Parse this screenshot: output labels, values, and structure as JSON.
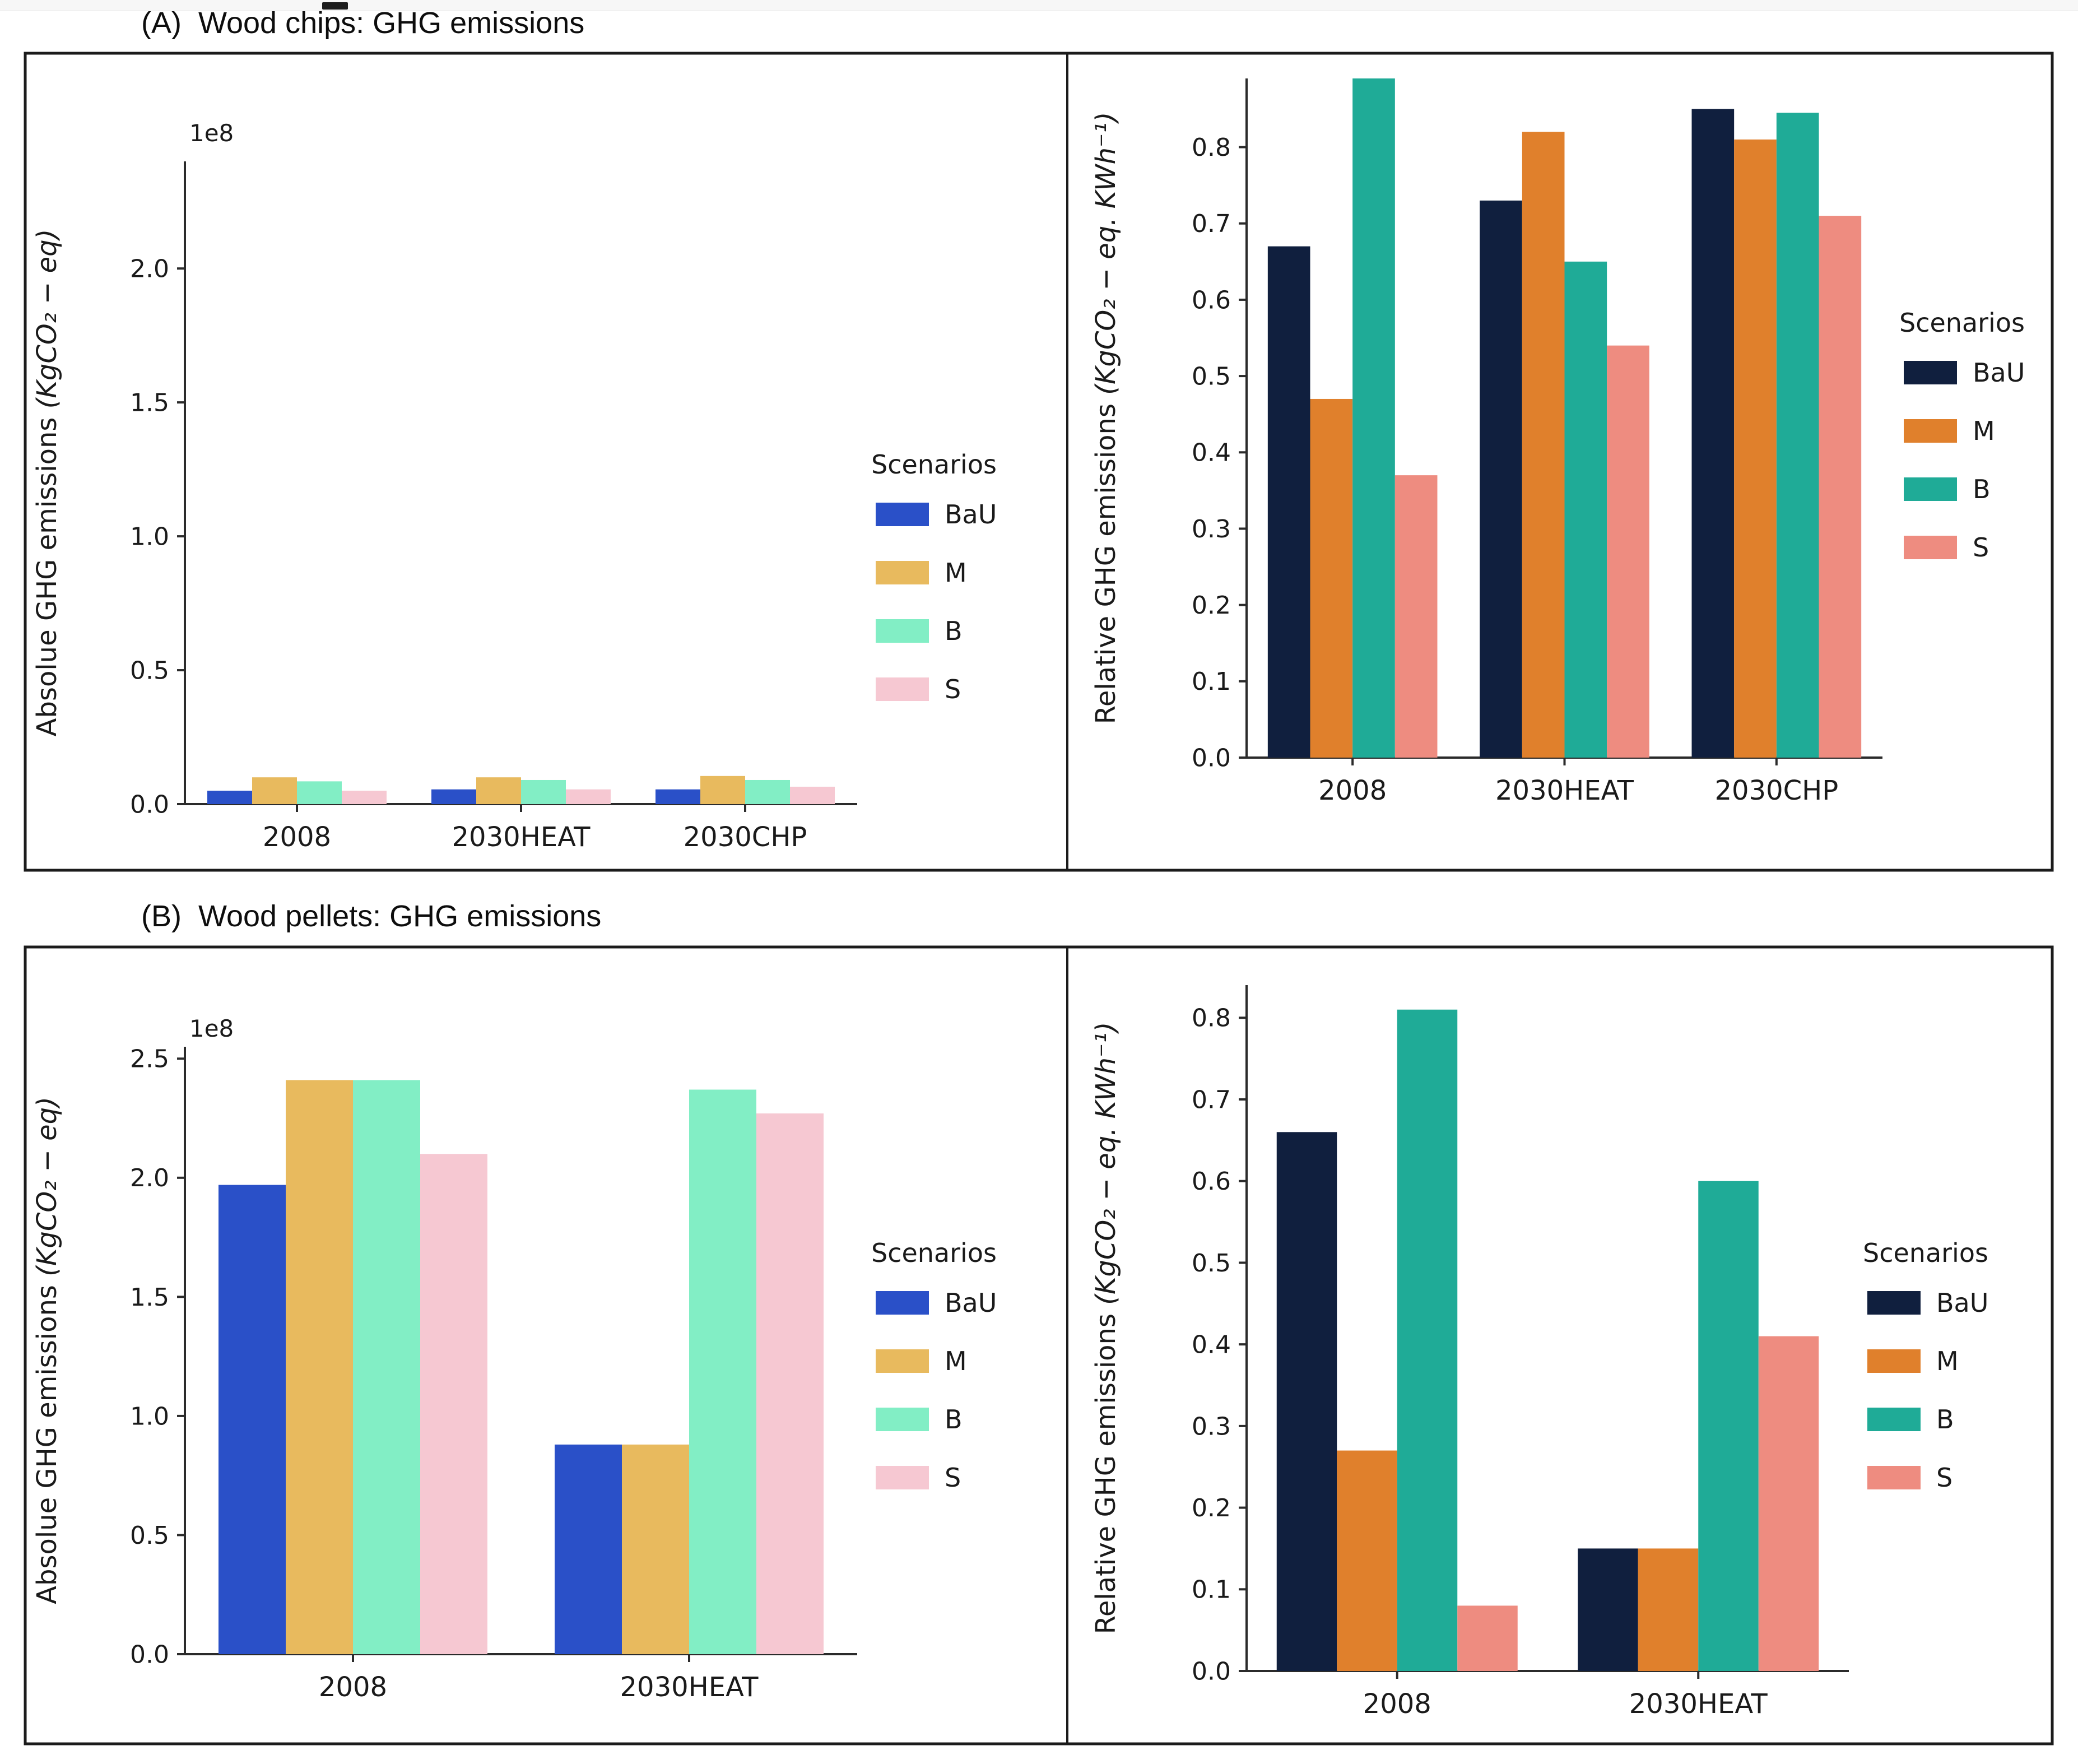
{
  "figure": {
    "background": "#ffffff",
    "panel_a_title": "(A)  Wood chips: GHG emissions",
    "panel_b_title": "(B)  Wood pellets: GHG emissions"
  },
  "chart_data": [
    {
      "type": "bar",
      "panel": "A",
      "side": "left",
      "title": "",
      "ylabel_prefix": "Absolue GHG emissions ",
      "ylabel_math": "(KgCO₂ − eq)",
      "offset_text": "1e8",
      "unit_scale": 100000000,
      "categories": [
        "2008",
        "2030HEAT",
        "2030CHP"
      ],
      "series": [
        {
          "name": "BaU",
          "color": "#2a50c8",
          "values": [
            0.05,
            0.055,
            0.055
          ]
        },
        {
          "name": "M",
          "color": "#e8ba5e",
          "values": [
            0.1,
            0.1,
            0.105
          ]
        },
        {
          "name": "B",
          "color": "#82eec5",
          "values": [
            0.085,
            0.09,
            0.09
          ]
        },
        {
          "name": "S",
          "color": "#f6c8d2",
          "values": [
            0.05,
            0.055,
            0.065
          ]
        }
      ],
      "yticks": [
        0.0,
        0.5,
        1.0,
        1.5,
        2.0
      ],
      "ylim": [
        0,
        2.4
      ],
      "legend_title": "Scenarios",
      "legend_position": "right",
      "grid": false
    },
    {
      "type": "bar",
      "panel": "A",
      "side": "right",
      "title": "",
      "ylabel_prefix": "Relative GHG emissions ",
      "ylabel_math": "(KgCO₂ − eq. KWh⁻¹)",
      "offset_text": "",
      "unit_scale": 1,
      "categories": [
        "2008",
        "2030HEAT",
        "2030CHP"
      ],
      "series": [
        {
          "name": "BaU",
          "color": "#101f3e",
          "values": [
            0.67,
            0.73,
            0.85
          ]
        },
        {
          "name": "M",
          "color": "#e0802c",
          "values": [
            0.47,
            0.82,
            0.81
          ]
        },
        {
          "name": "B",
          "color": "#1fab97",
          "values": [
            0.89,
            0.65,
            0.845
          ]
        },
        {
          "name": "S",
          "color": "#ee8c80",
          "values": [
            0.37,
            0.54,
            0.71
          ]
        }
      ],
      "yticks": [
        0.0,
        0.1,
        0.2,
        0.3,
        0.4,
        0.5,
        0.6,
        0.7,
        0.8
      ],
      "ylim": [
        0,
        0.89
      ],
      "legend_title": "Scenarios",
      "legend_position": "right",
      "grid": false
    },
    {
      "type": "bar",
      "panel": "B",
      "side": "left",
      "title": "",
      "ylabel_prefix": "Absolue GHG emissions ",
      "ylabel_math": "(KgCO₂ − eq)",
      "offset_text": "1e8",
      "unit_scale": 100000000,
      "categories": [
        "2008",
        "2030HEAT"
      ],
      "series": [
        {
          "name": "BaU",
          "color": "#2a50c8",
          "values": [
            1.97,
            0.88
          ]
        },
        {
          "name": "M",
          "color": "#e8ba5e",
          "values": [
            2.41,
            0.88
          ]
        },
        {
          "name": "B",
          "color": "#82eec5",
          "values": [
            2.41,
            2.37
          ]
        },
        {
          "name": "S",
          "color": "#f6c8d2",
          "values": [
            2.1,
            2.27
          ]
        }
      ],
      "yticks": [
        0.0,
        0.5,
        1.0,
        1.5,
        2.0,
        2.5
      ],
      "ylim": [
        0,
        2.55
      ],
      "legend_title": "Scenarios",
      "legend_position": "right",
      "grid": false
    },
    {
      "type": "bar",
      "panel": "B",
      "side": "right",
      "title": "",
      "ylabel_prefix": "Relative GHG emissions ",
      "ylabel_math": "(KgCO₂ − eq. KWh⁻¹)",
      "offset_text": "",
      "unit_scale": 1,
      "categories": [
        "2008",
        "2030HEAT"
      ],
      "series": [
        {
          "name": "BaU",
          "color": "#101f3e",
          "values": [
            0.66,
            0.15
          ]
        },
        {
          "name": "M",
          "color": "#e0802c",
          "values": [
            0.27,
            0.15
          ]
        },
        {
          "name": "B",
          "color": "#1fab97",
          "values": [
            0.81,
            0.6
          ]
        },
        {
          "name": "S",
          "color": "#ee8c80",
          "values": [
            0.08,
            0.41
          ]
        }
      ],
      "yticks": [
        0.0,
        0.1,
        0.2,
        0.3,
        0.4,
        0.5,
        0.6,
        0.7,
        0.8
      ],
      "ylim": [
        0,
        0.84
      ],
      "legend_title": "Scenarios",
      "legend_position": "right",
      "grid": false
    }
  ]
}
